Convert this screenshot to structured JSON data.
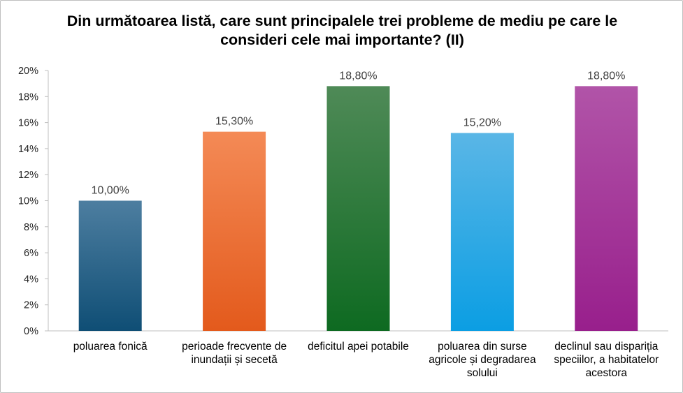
{
  "chart_data": {
    "type": "bar",
    "title": "Din următoarea listă, care sunt principalele trei probleme de mediu pe care le consideri cele mai importante? (II)",
    "categories": [
      "poluarea fonică",
      "perioade frecvente de inundații și secetă",
      "deficitul apei potabile",
      "poluarea din surse agricole și degradarea solului",
      "declinul sau dispariția speciilor, a habitatelor acestora"
    ],
    "values": [
      10.0,
      15.3,
      18.8,
      15.2,
      18.8
    ],
    "data_labels": [
      "10,00%",
      "15,30%",
      "18,80%",
      "15,20%",
      "18,80%"
    ],
    "ylim": [
      0,
      20
    ],
    "yticks": [
      "0%",
      "2%",
      "4%",
      "6%",
      "8%",
      "10%",
      "12%",
      "14%",
      "16%",
      "18%",
      "20%"
    ],
    "grid": false,
    "legend": "none",
    "colors": [
      [
        "#4d7ea0",
        "#0f4e75"
      ],
      [
        "#f48a56",
        "#e35a1c"
      ],
      [
        "#4f8a57",
        "#0e6a21"
      ],
      [
        "#5ab6e6",
        "#0b9ee3"
      ],
      [
        "#b154a8",
        "#981f8c"
      ]
    ]
  }
}
